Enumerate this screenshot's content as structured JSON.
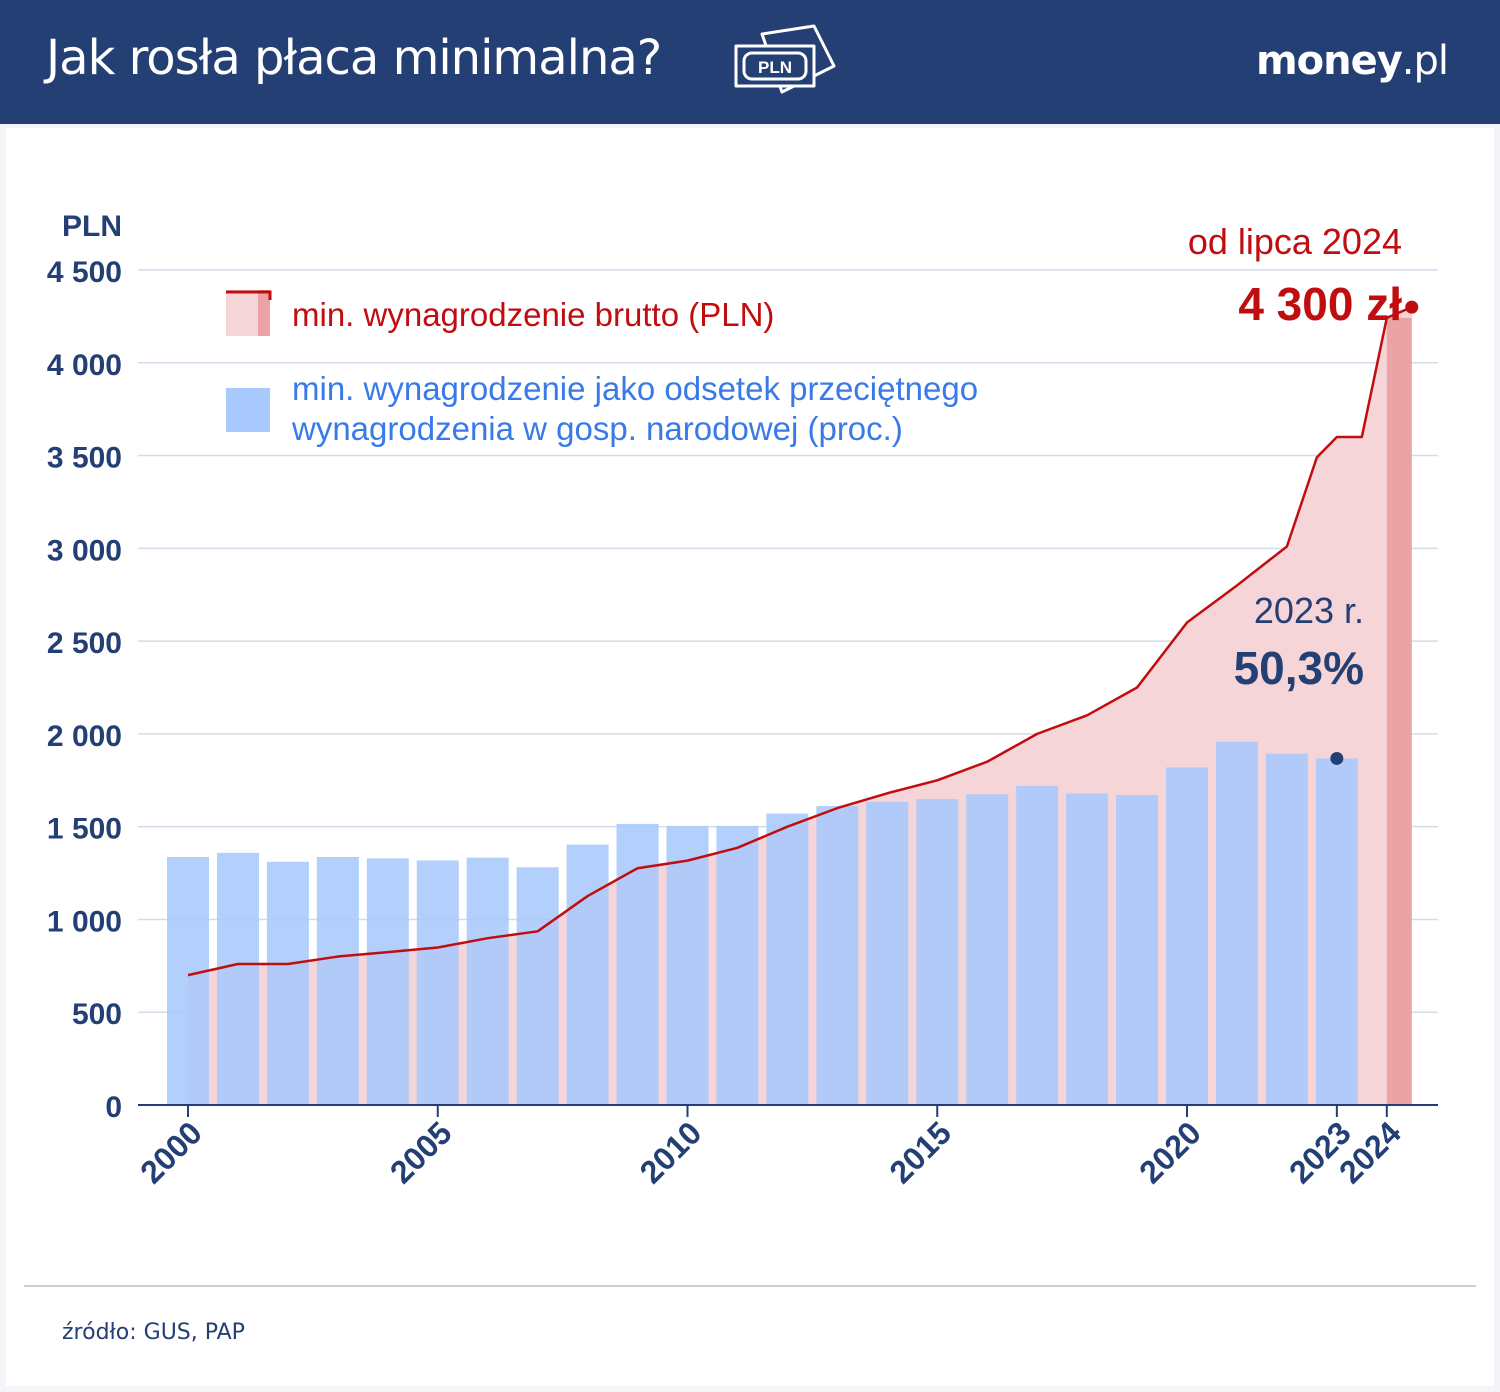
{
  "header": {
    "title": "Jak rosła płaca minimalna?",
    "icon_text": "PLN",
    "logo_bold": "money",
    "logo_light": ".pl"
  },
  "colors": {
    "header_bg": "#233f74",
    "line": "#c00d10",
    "area": "#f6d5d8",
    "bar": "#a9c8fb",
    "bar_2024": "#eba3a6",
    "axis_text": "#233f74",
    "legend_blue": "#3a7ae8"
  },
  "chart_data": {
    "type": "bar",
    "ylabel": "PLN",
    "ylim": [
      0,
      4500
    ],
    "yticks": [
      0,
      500,
      1000,
      1500,
      2000,
      2500,
      3000,
      3500,
      4000,
      4500
    ],
    "ytick_labels": [
      "0",
      "500",
      "1 000",
      "1 500",
      "2 000",
      "2 500",
      "3 000",
      "3 500",
      "4 000",
      "4 500"
    ],
    "grid": true,
    "xticks": [
      "2000",
      "2005",
      "2010",
      "2015",
      "2020",
      "2023",
      "2024"
    ],
    "legend_position": "top-left",
    "series": [
      {
        "name": "min. wynagrodzenie brutto (PLN)",
        "kind": "area-line",
        "x": [
          2000,
          2001,
          2002,
          2003,
          2004,
          2005,
          2006,
          2007,
          2008,
          2009,
          2010,
          2011,
          2012,
          2013,
          2014,
          2015,
          2016,
          2017,
          2018,
          2019,
          2020,
          2021,
          2022,
          2022.6,
          2023,
          2023.5,
          2024,
          2024.5
        ],
        "values": [
          700,
          760,
          760,
          800,
          824,
          849,
          899,
          936,
          1126,
          1276,
          1317,
          1386,
          1500,
          1600,
          1680,
          1750,
          1850,
          2000,
          2100,
          2250,
          2600,
          2800,
          3010,
          3490,
          3600,
          3600,
          4242,
          4300
        ]
      },
      {
        "name": "min. wynagrodzenie jako odsetek przeciętnego wynagrodzenia w gosp. narodowej (proc.)",
        "kind": "bar",
        "x": [
          2000,
          2001,
          2002,
          2003,
          2004,
          2005,
          2006,
          2007,
          2008,
          2009,
          2010,
          2011,
          2012,
          2013,
          2014,
          2015,
          2016,
          2017,
          2018,
          2019,
          2020,
          2021,
          2022,
          2023
        ],
        "values": [
          36.0,
          36.6,
          35.3,
          36.0,
          35.8,
          35.5,
          35.9,
          34.5,
          37.8,
          40.8,
          40.5,
          40.5,
          42.3,
          43.4,
          44.0,
          44.4,
          45.1,
          46.3,
          45.2,
          45.0,
          49.0,
          52.7,
          51.0,
          50.3
        ]
      }
    ],
    "legend": {
      "red": "min. wynagrodzenie brutto (PLN)",
      "blue_line1": "min. wynagrodzenie jako odsetek przeciętnego",
      "blue_line2": "wynagrodzenia w gosp. narodowej (proc.)"
    },
    "annotations": {
      "red_caption": "od lipca 2024",
      "red_value": "4 300 zł",
      "blue_caption": "2023 r.",
      "blue_value": "50,3%"
    }
  },
  "footer": {
    "source": "źródło: GUS, PAP"
  }
}
